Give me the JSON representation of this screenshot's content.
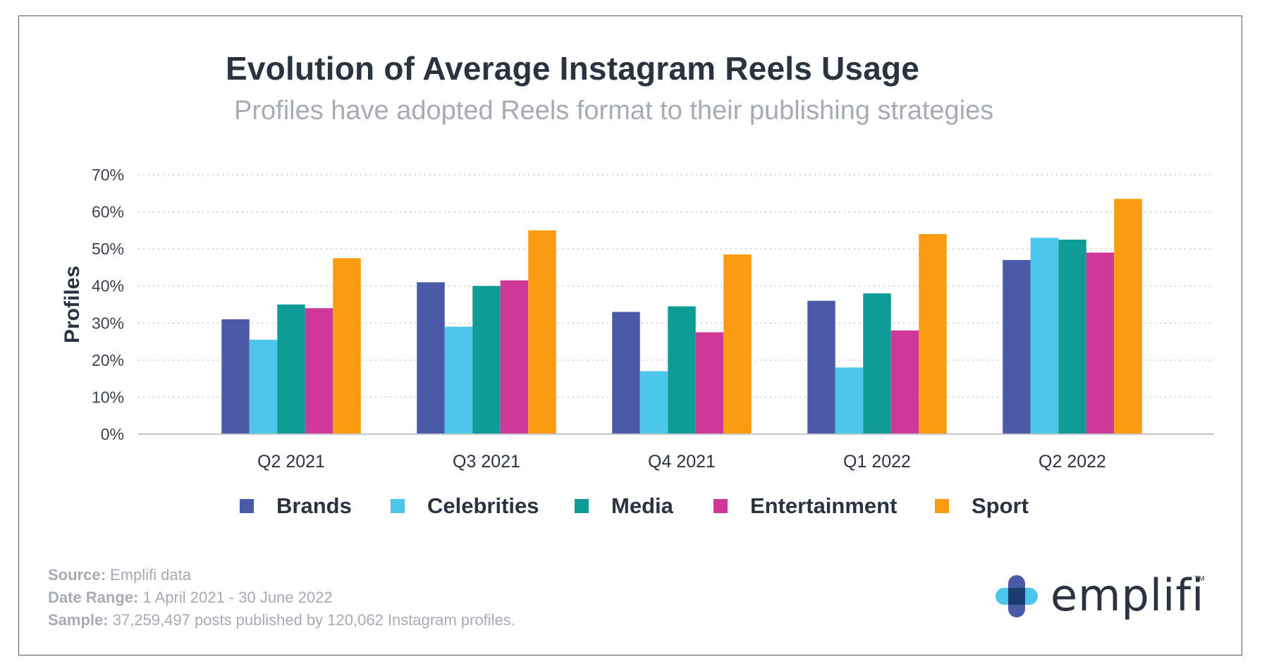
{
  "title": "Evolution of Average Instagram Reels Usage",
  "subtitle": "Profiles have adopted Reels format to their publishing strategies",
  "chart_data": {
    "type": "bar",
    "categories": [
      "Q2 2021",
      "Q3 2021",
      "Q4 2021",
      "Q1 2022",
      "Q2 2022"
    ],
    "series": [
      {
        "name": "Brands",
        "color": "#4a5aa8",
        "values": [
          31,
          41,
          33,
          36,
          47
        ]
      },
      {
        "name": "Celebrities",
        "color": "#4dc6ec",
        "values": [
          25.5,
          29,
          17,
          18,
          53
        ]
      },
      {
        "name": "Media",
        "color": "#0f9b96",
        "values": [
          35,
          40,
          34.5,
          38,
          52.5
        ]
      },
      {
        "name": "Entertainment",
        "color": "#cd3899",
        "values": [
          34,
          41.5,
          27.5,
          28,
          49
        ]
      },
      {
        "name": "Sport",
        "color": "#fb9b10",
        "values": [
          47.5,
          55,
          48.5,
          54,
          63.5
        ]
      }
    ],
    "ylabel": "Profiles",
    "yticks": [
      "0%",
      "10%",
      "20%",
      "30%",
      "40%",
      "50%",
      "60%",
      "70%"
    ],
    "ylim": [
      0,
      70
    ],
    "grid": true,
    "legend_position": "bottom"
  },
  "footer": {
    "source_label": "Source:",
    "source_value": "Emplifi data",
    "range_label": "Date Range:",
    "range_value": "1 April 2021 - 30 June 2022",
    "sample_label": "Sample:",
    "sample_value": "37,259,497 posts published by 120,062 Instagram profiles."
  },
  "logo": {
    "text": "emplifi",
    "tm": "TM"
  }
}
